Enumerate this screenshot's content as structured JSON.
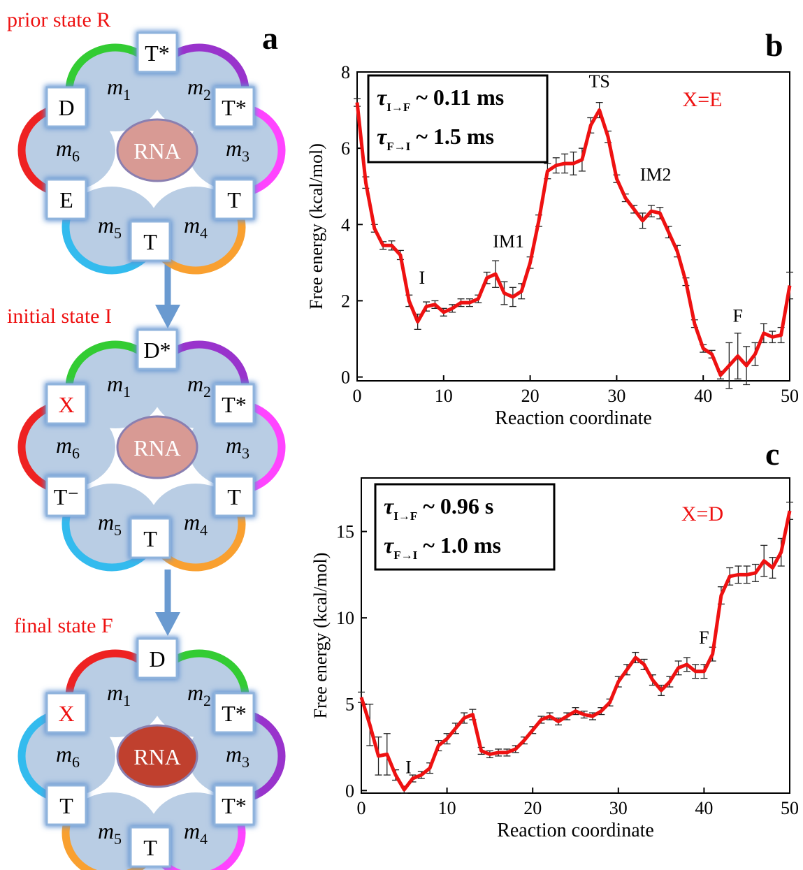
{
  "diagram": {
    "panel_label": "a",
    "subunits": [
      {
        "base": "m",
        "sub": "1"
      },
      {
        "base": "m",
        "sub": "2"
      },
      {
        "base": "m",
        "sub": "3"
      },
      {
        "base": "m",
        "sub": "4"
      },
      {
        "base": "m",
        "sub": "5"
      },
      {
        "base": "m",
        "sub": "6"
      }
    ],
    "states": [
      {
        "title": "prior state R",
        "colors": [
          "#33cc33",
          "#9933cc",
          "#ff44ff",
          "#f9a030",
          "#33bbee",
          "#ee2222"
        ],
        "boxes": [
          {
            "text": "T*"
          },
          {
            "text": "T*"
          },
          {
            "text": "T"
          },
          {
            "text": "T"
          },
          {
            "text": "E"
          },
          {
            "text": "D"
          }
        ],
        "rna": {
          "label": "RNA",
          "color": "#d89a94"
        }
      },
      {
        "title": "initial state I",
        "colors": [
          "#33cc33",
          "#9933cc",
          "#ff44ff",
          "#f9a030",
          "#33bbee",
          "#ee2222"
        ],
        "boxes": [
          {
            "text": "D*"
          },
          {
            "text": "T*"
          },
          {
            "text": "T"
          },
          {
            "text": "T"
          },
          {
            "text": "T⁻"
          },
          {
            "text": "X",
            "color": "#ee1111"
          }
        ],
        "rna": {
          "label": "RNA",
          "color": "#d89a94"
        }
      },
      {
        "title": "final state F",
        "colors": [
          "#ee2222",
          "#33cc33",
          "#9933cc",
          "#ff44ff",
          "#f9a030",
          "#33bbee"
        ],
        "boxes": [
          {
            "text": "D"
          },
          {
            "text": "T*"
          },
          {
            "text": "T*"
          },
          {
            "text": "T"
          },
          {
            "text": "T"
          },
          {
            "text": "X",
            "color": "#ee1111"
          }
        ],
        "rna": {
          "label": "RNA",
          "color": "#c0402e"
        }
      }
    ]
  },
  "chart_data": [
    {
      "type": "line",
      "panel_label": "b",
      "xlabel": "Reaction coordinate",
      "ylabel": "Free energy (kcal/mol)",
      "color": "#ee1111",
      "x": [
        0,
        1,
        2,
        3,
        4,
        5,
        6,
        7,
        8,
        9,
        10,
        11,
        12,
        13,
        14,
        15,
        16,
        17,
        18,
        19,
        20,
        21,
        22,
        23,
        24,
        25,
        26,
        27,
        28,
        29,
        30,
        31,
        32,
        33,
        34,
        35,
        36,
        37,
        38,
        39,
        40,
        41,
        42,
        43,
        44,
        45,
        46,
        47,
        48,
        49,
        50
      ],
      "values": [
        7.2,
        5.1,
        3.9,
        3.45,
        3.45,
        3.2,
        2.0,
        1.45,
        1.85,
        1.9,
        1.7,
        1.8,
        1.95,
        1.95,
        2.05,
        2.6,
        2.7,
        2.2,
        2.1,
        2.25,
        3.0,
        4.1,
        5.4,
        5.55,
        5.6,
        5.6,
        5.7,
        6.6,
        7.0,
        6.3,
        5.2,
        4.7,
        4.4,
        4.1,
        4.35,
        4.3,
        3.8,
        3.3,
        2.5,
        1.4,
        0.75,
        0.6,
        0.05,
        0.3,
        0.55,
        0.3,
        0.6,
        1.15,
        1.05,
        1.1,
        2.4
      ],
      "errors": [
        0.1,
        0.15,
        0.1,
        0.1,
        0.12,
        0.12,
        0.15,
        0.2,
        0.12,
        0.1,
        0.1,
        0.1,
        0.1,
        0.1,
        0.1,
        0.15,
        0.35,
        0.3,
        0.25,
        0.2,
        0.15,
        0.15,
        0.2,
        0.2,
        0.25,
        0.3,
        0.3,
        0.2,
        0.2,
        0.15,
        0.1,
        0.1,
        0.1,
        0.2,
        0.15,
        0.15,
        0.15,
        0.15,
        0.1,
        0.1,
        0.1,
        0.1,
        0.1,
        0.6,
        0.6,
        0.5,
        0.3,
        0.25,
        0.15,
        0.2,
        0.35
      ],
      "xlim": [
        0,
        50
      ],
      "ylim": [
        -0.1,
        8
      ],
      "xticks": [
        0,
        10,
        20,
        30,
        40,
        50
      ],
      "yticks": [
        0,
        2,
        4,
        6,
        8
      ],
      "rates": [
        {
          "symbol": "τ",
          "subscript": "I→F",
          "text": "~ 0.11 ms"
        },
        {
          "symbol": "τ",
          "subscript": "F→I",
          "text": "~ 1.5 ms"
        }
      ],
      "condition": "X=E",
      "annotations": [
        "I",
        "IM1",
        "TS",
        "IM2",
        "F"
      ]
    },
    {
      "type": "line",
      "panel_label": "c",
      "xlabel": "Reaction coordinate",
      "ylabel": "Free energy (kcal/mol)",
      "color": "#ee1111",
      "x": [
        0,
        1,
        2,
        3,
        4,
        5,
        6,
        7,
        8,
        9,
        10,
        11,
        12,
        13,
        14,
        15,
        16,
        17,
        18,
        19,
        20,
        21,
        22,
        23,
        24,
        25,
        26,
        27,
        28,
        29,
        30,
        31,
        32,
        33,
        34,
        35,
        36,
        37,
        38,
        39,
        40,
        41,
        42,
        43,
        44,
        45,
        46,
        47,
        48,
        49,
        50
      ],
      "values": [
        5.4,
        3.8,
        2.0,
        2.1,
        0.9,
        0.05,
        0.7,
        0.9,
        1.3,
        2.6,
        3.0,
        3.6,
        4.2,
        4.4,
        2.3,
        2.1,
        2.2,
        2.2,
        2.4,
        2.9,
        3.5,
        4.1,
        4.3,
        4.0,
        4.3,
        4.6,
        4.4,
        4.3,
        4.6,
        5.1,
        6.3,
        7.0,
        7.7,
        7.3,
        6.4,
        5.8,
        6.3,
        7.1,
        7.3,
        6.9,
        6.9,
        7.9,
        11.3,
        12.4,
        12.5,
        12.5,
        12.6,
        13.3,
        12.9,
        13.8,
        16.2
      ],
      "errors": [
        0.3,
        1.2,
        1.1,
        1.2,
        0.3,
        0.2,
        0.2,
        0.2,
        0.3,
        0.3,
        0.3,
        0.3,
        0.3,
        0.3,
        0.2,
        0.2,
        0.2,
        0.2,
        0.2,
        0.2,
        0.2,
        0.2,
        0.2,
        0.2,
        0.2,
        0.2,
        0.2,
        0.2,
        0.2,
        0.2,
        0.3,
        0.3,
        0.3,
        0.3,
        0.3,
        0.3,
        0.3,
        0.4,
        0.4,
        0.4,
        0.4,
        0.4,
        0.5,
        0.5,
        0.5,
        0.5,
        0.5,
        0.9,
        0.6,
        0.8,
        0.5
      ],
      "xlim": [
        0,
        50
      ],
      "ylim": [
        -0.15,
        18.1
      ],
      "xticks": [
        0,
        10,
        20,
        30,
        40,
        50
      ],
      "yticks": [
        0,
        5,
        10,
        15
      ],
      "rates": [
        {
          "symbol": "τ",
          "subscript": "I→F",
          "text": "~ 0.96 s"
        },
        {
          "symbol": "τ",
          "subscript": "F→I",
          "text": "~ 1.0 ms"
        }
      ],
      "condition": "X=D",
      "annotations": [
        "I",
        "F"
      ]
    }
  ]
}
